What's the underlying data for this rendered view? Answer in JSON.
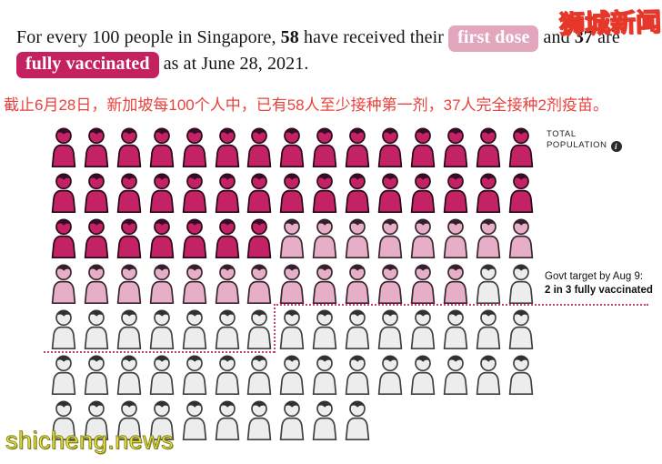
{
  "watermarks": {
    "top_right": "狮城新闻",
    "bottom_left": "shicheng.news"
  },
  "title": {
    "line1_part1": "For every 100 people in Singapore, ",
    "stat_first_dose": "58",
    "line1_part2": " have received their ",
    "badge_first_dose": "first dose",
    "line1_part3": " and ",
    "stat_fully": "37",
    "line1_part4": " are ",
    "badge_fully_vaccinated": "fully vaccinated",
    "line2_part2": " as at June 28, 2021."
  },
  "subtitle_zh": "截止6月28日，新加坡每100个人中，已有58人至少接种第一剂，37人完全接种2剂疫苗。",
  "labels": {
    "total_population_line1": "TOTAL",
    "total_population_line2": "POPULATION",
    "info_icon_glyph": "i",
    "govt_target_line1": "Govt target by Aug 9:",
    "govt_target_line2": "2 in 3 fully vaccinated"
  },
  "colors": {
    "badge_first_dose": "#e2a6bd",
    "badge_fully_vaccinated": "#c3215f",
    "subtitle_red": "#e9413c",
    "target_dash": "#bf4379",
    "watermark_yellow": "#ffe70f"
  },
  "chart_data": {
    "type": "pictogram",
    "title": "For every 100 people in Singapore, 58 have received their first dose and 37 are fully vaccinated as at June 28, 2021.",
    "total_icons": 100,
    "fully_vaccinated": 37,
    "first_dose_total": 58,
    "first_dose_only": 21,
    "unvaccinated": 42,
    "icons_per_row": [
      15,
      15,
      15,
      15,
      15,
      15,
      10
    ],
    "target_annotation": "Govt target by Aug 9: 2 in 3 fully vaccinated",
    "target_fraction": 0.667,
    "legend_note": "dark = fully vaccinated, light pink = first dose only, grey = not vaccinated",
    "colors": {
      "fully": {
        "fill": "#c32364",
        "stroke": "#240818",
        "hair": "#380c26"
      },
      "partial": {
        "fill": "#e7aec8",
        "stroke": "#38262f",
        "hair": "#33202b"
      },
      "none": {
        "fill": "#ededed",
        "stroke": "#414141",
        "hair": "#303030"
      }
    },
    "layout": {
      "col_pitch": 35.9,
      "row_pitch": 50
    }
  }
}
